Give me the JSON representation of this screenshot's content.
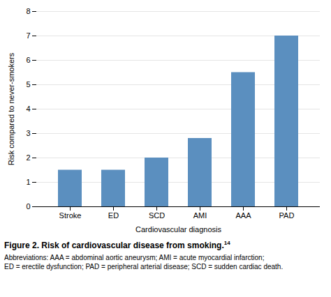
{
  "chart_data": {
    "type": "bar",
    "title": "Figure 2. Risk of cardiovascular disease from smoking.",
    "title_superscript": "14",
    "caption": [
      "Abbreviations: AAA = abdominal aortic aneurysm; AMI = acute myocardial infarction;",
      "ED = erectile dysfunction; PAD = peripheral arterial disease; SCD = sudden cardiac death."
    ],
    "xlabel": "Cardiovascular diagnosis",
    "ylabel": "Risk compared to never-smokers",
    "categories": [
      "Stroke",
      "ED",
      "SCD",
      "AMI",
      "AAA",
      "PAD"
    ],
    "values": [
      1.5,
      1.5,
      2.0,
      2.8,
      5.5,
      7.0
    ],
    "color": "#5b8fbf",
    "ylim": [
      0,
      8
    ],
    "yticks": [
      0,
      1,
      2,
      3,
      4,
      5,
      6,
      7,
      8
    ],
    "grid": true
  }
}
